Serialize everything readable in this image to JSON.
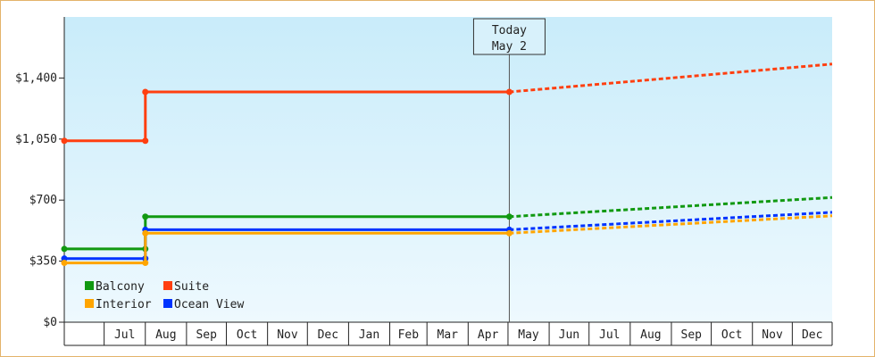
{
  "chart_data": {
    "type": "line",
    "title": "",
    "xlabel": "",
    "ylabel": "",
    "ylim": [
      0,
      1750
    ],
    "yticks": [
      {
        "value": 0,
        "label": "$0"
      },
      {
        "value": 350,
        "label": "$350"
      },
      {
        "value": 700,
        "label": "$700"
      },
      {
        "value": 1050,
        "label": "$1,050"
      },
      {
        "value": 1400,
        "label": "$1,400"
      }
    ],
    "x_start": "2024-06-01",
    "x_end": "2025-12-31",
    "month_ticks": [
      "Jul",
      "Aug",
      "Sep",
      "Oct",
      "Nov",
      "Dec",
      "Jan",
      "Feb",
      "Mar",
      "Apr",
      "May",
      "Jun",
      "Jul",
      "Aug",
      "Sep",
      "Oct",
      "Nov",
      "Dec"
    ],
    "month_tick_dates": [
      "2024-07-01",
      "2024-08-01",
      "2024-09-01",
      "2024-10-01",
      "2024-11-01",
      "2024-12-01",
      "2025-01-01",
      "2025-02-01",
      "2025-03-01",
      "2025-04-01",
      "2025-05-01",
      "2025-06-01",
      "2025-07-01",
      "2025-08-01",
      "2025-09-01",
      "2025-10-01",
      "2025-11-01",
      "2025-12-01"
    ],
    "today": {
      "date": "2025-05-02",
      "label_line1": "Today",
      "label_line2": "May 2"
    },
    "grid": false,
    "legend_position": "bottom-left",
    "series": [
      {
        "name": "Suite",
        "color": "#ff3f10",
        "points": [
          [
            "2024-06-01",
            1040
          ],
          [
            "2024-08-01",
            1040
          ],
          [
            "2024-08-01",
            1320
          ],
          [
            "2025-05-02",
            1320
          ]
        ],
        "projection": [
          [
            "2025-05-02",
            1320
          ],
          [
            "2025-12-31",
            1480
          ]
        ]
      },
      {
        "name": "Balcony",
        "color": "#119911",
        "points": [
          [
            "2024-06-01",
            420
          ],
          [
            "2024-08-01",
            420
          ],
          [
            "2024-08-01",
            605
          ],
          [
            "2025-05-02",
            605
          ]
        ],
        "projection": [
          [
            "2025-05-02",
            605
          ],
          [
            "2025-12-31",
            715
          ]
        ]
      },
      {
        "name": "Ocean View",
        "color": "#0033ff",
        "points": [
          [
            "2024-06-01",
            365
          ],
          [
            "2024-08-01",
            365
          ],
          [
            "2024-08-01",
            530
          ],
          [
            "2025-05-02",
            530
          ]
        ],
        "projection": [
          [
            "2025-05-02",
            530
          ],
          [
            "2025-12-31",
            630
          ]
        ]
      },
      {
        "name": "Interior",
        "color": "#ffa500",
        "points": [
          [
            "2024-06-01",
            340
          ],
          [
            "2024-08-01",
            340
          ],
          [
            "2024-08-01",
            510
          ],
          [
            "2025-05-02",
            510
          ]
        ],
        "projection": [
          [
            "2025-05-02",
            510
          ],
          [
            "2025-12-31",
            610
          ]
        ]
      }
    ],
    "legend": [
      {
        "name": "Balcony",
        "color": "#119911"
      },
      {
        "name": "Suite",
        "color": "#ff3f10"
      },
      {
        "name": "Interior",
        "color": "#ffa500"
      },
      {
        "name": "Ocean View",
        "color": "#0033ff"
      }
    ]
  }
}
